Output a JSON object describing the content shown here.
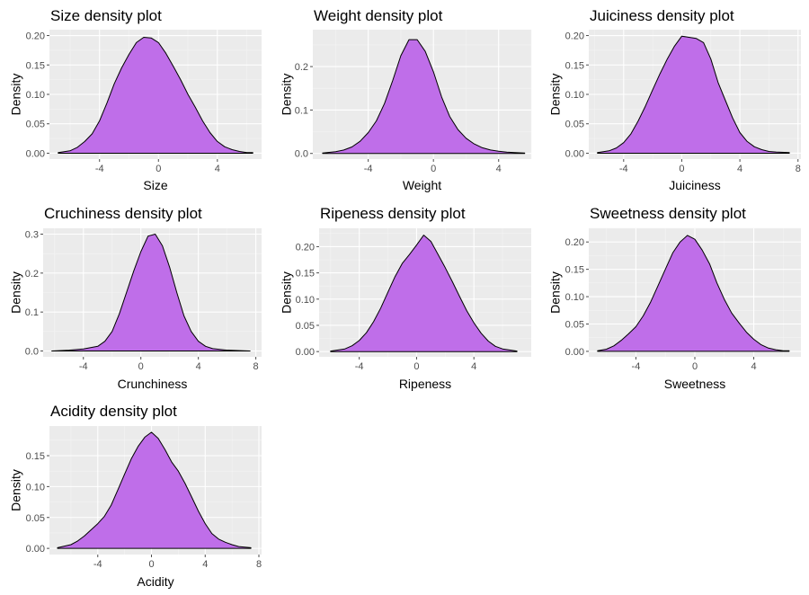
{
  "figure": {
    "background": "#ffffff"
  },
  "style": {
    "panel_bg": "#ebebeb",
    "grid_major": "#ffffff",
    "grid_minor": "#f4f4f4",
    "fill": "#bf6ee9",
    "stroke": "#000000",
    "tick_color": "#4d4d4d"
  },
  "chart_data": [
    {
      "type": "area",
      "title": "Size density plot",
      "xlabel": "Size",
      "ylabel": "Density",
      "xlim": [
        -7.4,
        7.0
      ],
      "ylim": [
        -0.01,
        0.21
      ],
      "xticks": [
        -4,
        0,
        4
      ],
      "yticks": [
        0.0,
        0.05,
        0.1,
        0.15,
        0.2
      ],
      "ytick_labels": [
        "0.00",
        "0.05",
        "0.10",
        "0.15",
        "0.20"
      ],
      "grid": true,
      "x": [
        -6.8,
        -6.0,
        -5.5,
        -5.0,
        -4.5,
        -4.0,
        -3.5,
        -3.0,
        -2.5,
        -2.0,
        -1.5,
        -1.0,
        -0.5,
        0.0,
        0.5,
        1.0,
        1.5,
        2.0,
        2.5,
        3.0,
        3.5,
        4.0,
        4.5,
        5.0,
        5.5,
        6.0,
        6.4
      ],
      "y": [
        0.001,
        0.004,
        0.01,
        0.02,
        0.033,
        0.055,
        0.085,
        0.118,
        0.145,
        0.168,
        0.188,
        0.197,
        0.196,
        0.188,
        0.17,
        0.148,
        0.125,
        0.1,
        0.078,
        0.055,
        0.035,
        0.02,
        0.011,
        0.006,
        0.003,
        0.001,
        0.001
      ]
    },
    {
      "type": "area",
      "title": "Weight density plot",
      "xlabel": "Weight",
      "ylabel": "Density",
      "xlim": [
        -7.4,
        6.0
      ],
      "ylim": [
        -0.013,
        0.285
      ],
      "xticks": [
        -4,
        0,
        4
      ],
      "yticks": [
        0.0,
        0.1,
        0.2
      ],
      "ytick_labels": [
        "0.0",
        "0.1",
        "0.2"
      ],
      "grid": true,
      "x": [
        -6.8,
        -6.0,
        -5.5,
        -5.0,
        -4.5,
        -4.0,
        -3.5,
        -3.0,
        -2.5,
        -2.0,
        -1.5,
        -1.0,
        -0.5,
        0.0,
        0.5,
        1.0,
        1.5,
        2.0,
        2.5,
        3.0,
        3.5,
        4.0,
        4.5,
        5.0,
        5.6
      ],
      "y": [
        0.001,
        0.004,
        0.008,
        0.015,
        0.028,
        0.048,
        0.075,
        0.115,
        0.168,
        0.225,
        0.262,
        0.262,
        0.235,
        0.188,
        0.13,
        0.085,
        0.055,
        0.035,
        0.022,
        0.013,
        0.008,
        0.005,
        0.003,
        0.002,
        0.001
      ]
    },
    {
      "type": "area",
      "title": "Juiciness density plot",
      "xlabel": "Juiciness",
      "ylabel": "Density",
      "xlim": [
        -6.4,
        8.2
      ],
      "ylim": [
        -0.01,
        0.21
      ],
      "xticks": [
        -4,
        0,
        4,
        8
      ],
      "yticks": [
        0.0,
        0.05,
        0.1,
        0.15,
        0.2
      ],
      "ytick_labels": [
        "0.00",
        "0.05",
        "0.10",
        "0.15",
        "0.20"
      ],
      "grid": true,
      "x": [
        -5.8,
        -5.0,
        -4.5,
        -4.0,
        -3.5,
        -3.0,
        -2.5,
        -2.0,
        -1.5,
        -1.0,
        -0.5,
        0.0,
        0.5,
        1.0,
        1.5,
        2.0,
        2.5,
        3.0,
        3.5,
        4.0,
        4.5,
        5.0,
        5.5,
        6.0,
        6.5,
        7.4
      ],
      "y": [
        0.001,
        0.004,
        0.009,
        0.018,
        0.033,
        0.055,
        0.08,
        0.108,
        0.135,
        0.16,
        0.182,
        0.199,
        0.197,
        0.195,
        0.188,
        0.16,
        0.12,
        0.09,
        0.06,
        0.035,
        0.02,
        0.011,
        0.006,
        0.003,
        0.002,
        0.001
      ]
    },
    {
      "type": "area",
      "title": "Cruchiness density plot",
      "xlabel": "Crunchiness",
      "ylabel": "Density",
      "xlim": [
        -6.8,
        8.4
      ],
      "ylim": [
        -0.015,
        0.315
      ],
      "xticks": [
        -4,
        0,
        4,
        8
      ],
      "yticks": [
        0.0,
        0.1,
        0.2,
        0.3
      ],
      "ytick_labels": [
        "0.0",
        "0.1",
        "0.2",
        "0.3"
      ],
      "grid": true,
      "x": [
        -6.2,
        -5.0,
        -4.0,
        -3.0,
        -2.5,
        -2.0,
        -1.5,
        -1.0,
        -0.5,
        0.0,
        0.5,
        1.0,
        1.5,
        2.0,
        2.5,
        3.0,
        3.5,
        4.0,
        4.5,
        5.0,
        6.0,
        7.6
      ],
      "y": [
        0.0,
        0.002,
        0.005,
        0.012,
        0.025,
        0.05,
        0.095,
        0.15,
        0.205,
        0.255,
        0.295,
        0.3,
        0.27,
        0.215,
        0.15,
        0.09,
        0.05,
        0.025,
        0.012,
        0.006,
        0.002,
        0.0
      ]
    },
    {
      "type": "area",
      "title": "Ripeness density plot",
      "xlabel": "Ripeness",
      "ylabel": "Density",
      "xlim": [
        -6.8,
        8.0
      ],
      "ylim": [
        -0.01,
        0.235
      ],
      "xticks": [
        -4,
        0,
        4
      ],
      "yticks": [
        0.0,
        0.05,
        0.1,
        0.15,
        0.2
      ],
      "ytick_labels": [
        "0.00",
        "0.05",
        "0.10",
        "0.15",
        "0.20"
      ],
      "grid": true,
      "x": [
        -6.0,
        -5.0,
        -4.5,
        -4.0,
        -3.5,
        -3.0,
        -2.5,
        -2.0,
        -1.5,
        -1.0,
        -0.5,
        0.0,
        0.5,
        1.0,
        1.5,
        2.0,
        2.5,
        3.0,
        3.5,
        4.0,
        4.5,
        5.0,
        5.5,
        6.0,
        7.0
      ],
      "y": [
        0.001,
        0.005,
        0.011,
        0.021,
        0.036,
        0.057,
        0.083,
        0.113,
        0.143,
        0.168,
        0.185,
        0.203,
        0.222,
        0.21,
        0.185,
        0.16,
        0.133,
        0.105,
        0.078,
        0.055,
        0.035,
        0.02,
        0.01,
        0.005,
        0.001
      ]
    },
    {
      "type": "area",
      "title": "Sweetness density plot",
      "xlabel": "Sweetness",
      "ylabel": "Density",
      "xlim": [
        -7.2,
        7.2
      ],
      "ylim": [
        -0.01,
        0.225
      ],
      "xticks": [
        -4,
        0,
        4
      ],
      "yticks": [
        0.0,
        0.05,
        0.1,
        0.15,
        0.2
      ],
      "ytick_labels": [
        "0.00",
        "0.05",
        "0.10",
        "0.15",
        "0.20"
      ],
      "grid": true,
      "x": [
        -6.6,
        -6.0,
        -5.5,
        -5.0,
        -4.5,
        -4.0,
        -3.5,
        -3.0,
        -2.5,
        -2.0,
        -1.5,
        -1.0,
        -0.5,
        0.0,
        0.5,
        1.0,
        1.5,
        2.0,
        2.5,
        3.0,
        3.5,
        4.0,
        4.5,
        5.0,
        5.5,
        6.0,
        6.4
      ],
      "y": [
        0.001,
        0.004,
        0.01,
        0.02,
        0.032,
        0.045,
        0.065,
        0.09,
        0.12,
        0.15,
        0.18,
        0.2,
        0.212,
        0.205,
        0.185,
        0.16,
        0.125,
        0.095,
        0.07,
        0.052,
        0.035,
        0.022,
        0.012,
        0.006,
        0.003,
        0.001,
        0.001
      ]
    },
    {
      "type": "area",
      "title": "Acidity density plot",
      "xlabel": "Acidity",
      "ylabel": "Density",
      "xlim": [
        -7.6,
        8.2
      ],
      "ylim": [
        -0.01,
        0.198
      ],
      "xticks": [
        -4,
        0,
        4,
        8
      ],
      "yticks": [
        0.0,
        0.05,
        0.1,
        0.15
      ],
      "ytick_labels": [
        "0.00",
        "0.05",
        "0.10",
        "0.15"
      ],
      "grid": true,
      "x": [
        -7.0,
        -6.0,
        -5.5,
        -5.0,
        -4.5,
        -4.0,
        -3.5,
        -3.0,
        -2.5,
        -2.0,
        -1.5,
        -1.0,
        -0.5,
        0.0,
        0.5,
        1.0,
        1.5,
        2.0,
        2.5,
        3.0,
        3.5,
        4.0,
        4.5,
        5.0,
        5.5,
        6.0,
        6.5,
        7.4
      ],
      "y": [
        0.001,
        0.006,
        0.012,
        0.02,
        0.03,
        0.04,
        0.052,
        0.07,
        0.095,
        0.12,
        0.145,
        0.165,
        0.18,
        0.188,
        0.178,
        0.16,
        0.14,
        0.125,
        0.105,
        0.083,
        0.06,
        0.04,
        0.024,
        0.015,
        0.01,
        0.006,
        0.003,
        0.001
      ]
    }
  ]
}
